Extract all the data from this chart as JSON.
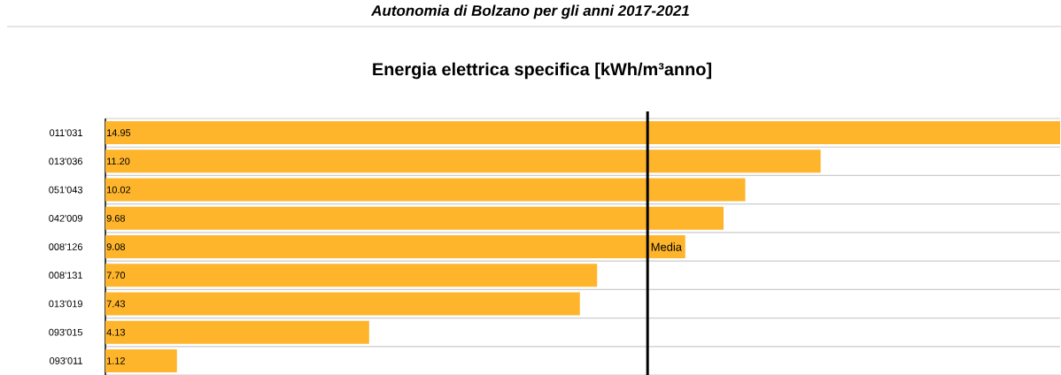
{
  "chart_data": {
    "type": "bar",
    "orientation": "horizontal",
    "subtitle": "Autonomia di Bolzano per gli anni 2017-2021",
    "title": "Energia elettrica specifica [kWh/m³anno]",
    "categories": [
      "011'031",
      "013'036",
      "051'043",
      "042'009",
      "008'126",
      "008'131",
      "013'019",
      "093'015",
      "093'011"
    ],
    "values": [
      14.95,
      11.2,
      10.02,
      9.68,
      9.08,
      7.7,
      7.43,
      4.13,
      1.12
    ],
    "value_labels": [
      "14.95",
      "11.20",
      "10.02",
      "9.68",
      "9.08",
      "7.70",
      "7.43",
      "4.13",
      "1.12"
    ],
    "color": "#feb52b",
    "xlim": [
      0,
      14.95
    ],
    "tick_labels": "y",
    "grid": "y",
    "ref_lines": [
      {
        "axis": "x",
        "value": 8.49,
        "label": "Media",
        "color": "#000000"
      }
    ]
  }
}
